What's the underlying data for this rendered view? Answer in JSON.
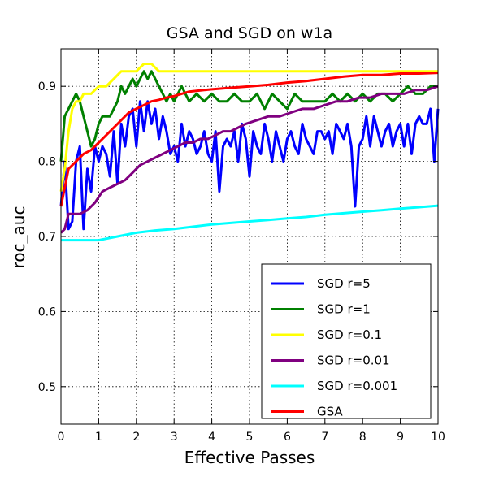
{
  "chart_data": {
    "type": "line",
    "title": "GSA and SGD on w1a",
    "xlabel": "Effective Passes",
    "ylabel": "roc_auc",
    "xlim": [
      0,
      10
    ],
    "ylim": [
      0.45,
      0.95
    ],
    "xticks": [
      "0",
      "1",
      "2",
      "3",
      "4",
      "5",
      "6",
      "7",
      "8",
      "9",
      "10"
    ],
    "yticks": [
      "0.5",
      "0.6",
      "0.7",
      "0.8",
      "0.9"
    ],
    "grid": true,
    "legend_position": "lower right",
    "series": [
      {
        "name": "SGD r=5",
        "color": "#0000ff",
        "x": [
          0,
          0.1,
          0.2,
          0.3,
          0.4,
          0.5,
          0.6,
          0.7,
          0.8,
          0.9,
          1.0,
          1.1,
          1.2,
          1.3,
          1.4,
          1.5,
          1.6,
          1.7,
          1.8,
          1.9,
          2.0,
          2.1,
          2.2,
          2.3,
          2.4,
          2.5,
          2.6,
          2.7,
          2.8,
          2.9,
          3.0,
          3.1,
          3.2,
          3.3,
          3.4,
          3.5,
          3.6,
          3.7,
          3.8,
          3.9,
          4.0,
          4.1,
          4.2,
          4.3,
          4.4,
          4.5,
          4.6,
          4.7,
          4.8,
          4.9,
          5.0,
          5.1,
          5.2,
          5.3,
          5.4,
          5.5,
          5.6,
          5.7,
          5.8,
          5.9,
          6.0,
          6.1,
          6.2,
          6.3,
          6.4,
          6.5,
          6.6,
          6.7,
          6.8,
          6.9,
          7.0,
          7.1,
          7.2,
          7.3,
          7.4,
          7.5,
          7.6,
          7.7,
          7.8,
          7.9,
          8.0,
          8.1,
          8.2,
          8.3,
          8.4,
          8.5,
          8.6,
          8.7,
          8.8,
          8.9,
          9.0,
          9.1,
          9.2,
          9.3,
          9.4,
          9.5,
          9.6,
          9.7,
          9.8,
          9.9,
          10.0
        ],
        "y": [
          0.74,
          0.8,
          0.71,
          0.72,
          0.8,
          0.82,
          0.71,
          0.79,
          0.76,
          0.82,
          0.8,
          0.82,
          0.81,
          0.78,
          0.84,
          0.77,
          0.85,
          0.82,
          0.86,
          0.87,
          0.82,
          0.88,
          0.84,
          0.88,
          0.85,
          0.87,
          0.83,
          0.86,
          0.84,
          0.81,
          0.82,
          0.8,
          0.85,
          0.82,
          0.84,
          0.83,
          0.81,
          0.82,
          0.84,
          0.81,
          0.8,
          0.84,
          0.76,
          0.82,
          0.83,
          0.82,
          0.84,
          0.8,
          0.85,
          0.83,
          0.78,
          0.84,
          0.82,
          0.81,
          0.85,
          0.83,
          0.8,
          0.84,
          0.82,
          0.8,
          0.83,
          0.84,
          0.82,
          0.81,
          0.85,
          0.83,
          0.82,
          0.81,
          0.84,
          0.84,
          0.83,
          0.84,
          0.81,
          0.85,
          0.84,
          0.83,
          0.85,
          0.82,
          0.74,
          0.82,
          0.83,
          0.86,
          0.82,
          0.86,
          0.84,
          0.82,
          0.84,
          0.85,
          0.82,
          0.84,
          0.85,
          0.82,
          0.85,
          0.81,
          0.85,
          0.86,
          0.85,
          0.85,
          0.87,
          0.8,
          0.87
        ]
      },
      {
        "name": "SGD r=1",
        "color": "#008000",
        "x": [
          0,
          0.1,
          0.2,
          0.3,
          0.4,
          0.5,
          0.6,
          0.7,
          0.8,
          0.9,
          1.0,
          1.1,
          1.2,
          1.3,
          1.4,
          1.5,
          1.6,
          1.7,
          1.8,
          1.9,
          2.0,
          2.1,
          2.2,
          2.3,
          2.4,
          2.5,
          2.6,
          2.7,
          2.8,
          2.9,
          3.0,
          3.2,
          3.4,
          3.6,
          3.8,
          4.0,
          4.2,
          4.4,
          4.6,
          4.8,
          5.0,
          5.2,
          5.4,
          5.6,
          5.8,
          6.0,
          6.2,
          6.4,
          6.6,
          6.8,
          7.0,
          7.2,
          7.4,
          7.6,
          7.8,
          8.0,
          8.2,
          8.4,
          8.6,
          8.8,
          9.0,
          9.2,
          9.4,
          9.6,
          9.8,
          10.0
        ],
        "y": [
          0.8,
          0.86,
          0.87,
          0.88,
          0.89,
          0.88,
          0.86,
          0.84,
          0.82,
          0.83,
          0.85,
          0.86,
          0.86,
          0.86,
          0.87,
          0.88,
          0.9,
          0.89,
          0.9,
          0.91,
          0.9,
          0.91,
          0.92,
          0.91,
          0.92,
          0.91,
          0.9,
          0.89,
          0.88,
          0.89,
          0.88,
          0.9,
          0.88,
          0.89,
          0.88,
          0.89,
          0.88,
          0.88,
          0.89,
          0.88,
          0.88,
          0.89,
          0.87,
          0.89,
          0.88,
          0.87,
          0.89,
          0.88,
          0.88,
          0.88,
          0.88,
          0.89,
          0.88,
          0.89,
          0.88,
          0.89,
          0.88,
          0.89,
          0.89,
          0.88,
          0.89,
          0.9,
          0.89,
          0.89,
          0.9,
          0.9
        ]
      },
      {
        "name": "SGD r=0.1",
        "color": "#ffff00",
        "x": [
          0,
          0.1,
          0.2,
          0.3,
          0.4,
          0.5,
          0.6,
          0.8,
          1.0,
          1.2,
          1.4,
          1.6,
          1.8,
          2.0,
          2.2,
          2.4,
          2.6,
          2.8,
          3.0,
          3.5,
          4.0,
          4.5,
          5.0,
          5.5,
          6.0,
          6.5,
          7.0,
          7.5,
          8.0,
          8.5,
          9.0,
          9.5,
          10.0
        ],
        "y": [
          0.76,
          0.79,
          0.84,
          0.87,
          0.88,
          0.88,
          0.89,
          0.89,
          0.9,
          0.9,
          0.91,
          0.92,
          0.92,
          0.92,
          0.93,
          0.93,
          0.92,
          0.92,
          0.92,
          0.92,
          0.92,
          0.92,
          0.92,
          0.92,
          0.92,
          0.92,
          0.92,
          0.92,
          0.92,
          0.92,
          0.92,
          0.92,
          0.92
        ]
      },
      {
        "name": "SGD r=0.01",
        "color": "#800080",
        "x": [
          0,
          0.1,
          0.2,
          0.3,
          0.5,
          0.7,
          0.9,
          1.1,
          1.3,
          1.5,
          1.7,
          1.9,
          2.1,
          2.3,
          2.5,
          2.7,
          2.9,
          3.1,
          3.3,
          3.5,
          3.7,
          3.9,
          4.1,
          4.3,
          4.5,
          4.7,
          4.9,
          5.2,
          5.5,
          5.8,
          6.1,
          6.4,
          6.7,
          7.0,
          7.3,
          7.6,
          7.9,
          8.2,
          8.5,
          8.8,
          9.1,
          9.4,
          9.7,
          10.0
        ],
        "y": [
          0.705,
          0.71,
          0.73,
          0.73,
          0.73,
          0.735,
          0.745,
          0.76,
          0.765,
          0.77,
          0.775,
          0.785,
          0.795,
          0.8,
          0.805,
          0.81,
          0.815,
          0.82,
          0.825,
          0.825,
          0.83,
          0.83,
          0.835,
          0.84,
          0.84,
          0.845,
          0.85,
          0.855,
          0.86,
          0.86,
          0.865,
          0.87,
          0.87,
          0.875,
          0.88,
          0.88,
          0.885,
          0.885,
          0.89,
          0.89,
          0.89,
          0.895,
          0.895,
          0.9
        ]
      },
      {
        "name": "SGD r=0.001",
        "color": "#00ffff",
        "x": [
          0,
          0.5,
          1.0,
          1.5,
          2.0,
          2.5,
          3.0,
          3.5,
          4.0,
          4.5,
          5.0,
          5.5,
          6.0,
          6.5,
          7.0,
          7.5,
          8.0,
          8.5,
          9.0,
          9.5,
          10.0
        ],
        "y": [
          0.695,
          0.695,
          0.695,
          0.7,
          0.705,
          0.708,
          0.71,
          0.713,
          0.716,
          0.718,
          0.72,
          0.722,
          0.724,
          0.726,
          0.729,
          0.731,
          0.733,
          0.735,
          0.737,
          0.739,
          0.741
        ]
      },
      {
        "name": "GSA",
        "color": "#ff0000",
        "x": [
          0,
          0.2,
          0.4,
          0.6,
          0.8,
          1.0,
          1.2,
          1.4,
          1.6,
          1.8,
          2.0,
          2.2,
          2.4,
          2.6,
          2.8,
          3.0,
          3.2,
          3.4,
          3.6,
          3.8,
          4.0,
          4.5,
          5.0,
          5.5,
          6.0,
          6.5,
          7.0,
          7.5,
          8.0,
          8.5,
          9.0,
          9.5,
          10.0
        ],
        "y": [
          0.74,
          0.79,
          0.8,
          0.81,
          0.815,
          0.825,
          0.835,
          0.845,
          0.855,
          0.865,
          0.87,
          0.875,
          0.88,
          0.882,
          0.885,
          0.887,
          0.89,
          0.893,
          0.894,
          0.895,
          0.896,
          0.898,
          0.9,
          0.902,
          0.905,
          0.907,
          0.91,
          0.913,
          0.915,
          0.915,
          0.917,
          0.917,
          0.918
        ]
      }
    ]
  }
}
